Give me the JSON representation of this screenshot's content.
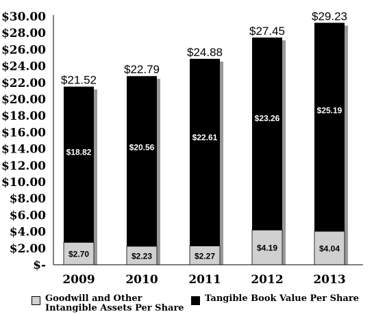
{
  "chart_data": {
    "type": "bar",
    "stacked": true,
    "categories": [
      "2009",
      "2010",
      "2011",
      "2012",
      "2013"
    ],
    "series": [
      {
        "name": "Goodwill and Other Intangible Assets Per Share",
        "values": [
          2.7,
          2.23,
          2.27,
          4.19,
          4.04
        ],
        "labels": [
          "$2.70",
          "$2.23",
          "$2.27",
          "$4.19",
          "$4.04"
        ],
        "color": "#d0d0d0",
        "label_color": "#000000"
      },
      {
        "name": "Tangible Book Value Per Share",
        "values": [
          18.82,
          20.56,
          22.61,
          23.26,
          25.19
        ],
        "labels": [
          "$18.82",
          "$20.56",
          "$22.61",
          "$23.26",
          "$25.19"
        ],
        "color": "#000000",
        "label_color": "#ffffff"
      }
    ],
    "totals": [
      "$21.52",
      "$22.79",
      "$24.88",
      "$27.45",
      "$29.23"
    ],
    "y_ticks": [
      "$-",
      "$2.00",
      "$4.00",
      "$6.00",
      "$8.00",
      "$10.00",
      "$12.00",
      "$14.00",
      "$16.00",
      "$18.00",
      "$20.00",
      "$22.00",
      "$24.00",
      "$26.00",
      "$28.00",
      "$30.00"
    ],
    "ylim": [
      0,
      30
    ],
    "grid": false,
    "shadow_color": "#999999",
    "legend_position": "bottom",
    "title": "",
    "xlabel": "",
    "ylabel": ""
  },
  "legend": [
    {
      "label_line1": "Goodwill and Other",
      "label_line2": "Intangible Assets Per Share",
      "color": "#d0d0d0"
    },
    {
      "label_line1": "Tangible Book Value Per Share",
      "label_line2": "",
      "color": "#000000"
    }
  ]
}
